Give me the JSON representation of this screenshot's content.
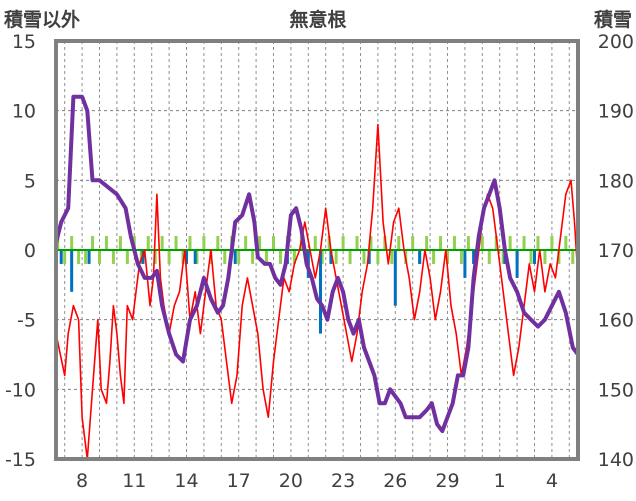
{
  "chart_data": {
    "type": "line",
    "title": "無意根",
    "left_axis": {
      "label": "積雪以外",
      "range": [
        -15,
        15
      ],
      "ticks": [
        "15",
        "10",
        "5",
        "0",
        "-5",
        "-10",
        "-15"
      ]
    },
    "right_axis": {
      "label": "積雪",
      "range": [
        140,
        200
      ],
      "ticks": [
        "200",
        "190",
        "180",
        "170",
        "160",
        "150",
        "140"
      ]
    },
    "x_ticks": [
      "8",
      "11",
      "14",
      "17",
      "20",
      "23",
      "26",
      "29",
      "1",
      "4"
    ],
    "grid": true,
    "colors": {
      "temperature": "#ff0000",
      "snow_depth": "#7030a0",
      "snow_change": "#92d050",
      "precipitation": "#0070c0",
      "zero_line": "#00a000",
      "frame": "#808080"
    },
    "series": [
      {
        "key": "temperature",
        "axis": "left",
        "points": [
          [
            6.5,
            -6
          ],
          [
            7,
            -9
          ],
          [
            7.2,
            -6
          ],
          [
            7.5,
            -4
          ],
          [
            7.8,
            -5
          ],
          [
            8,
            -12
          ],
          [
            8.3,
            -15
          ],
          [
            8.6,
            -10
          ],
          [
            8.9,
            -5
          ],
          [
            9.1,
            -10
          ],
          [
            9.4,
            -11
          ],
          [
            9.6,
            -8
          ],
          [
            9.8,
            -4
          ],
          [
            10,
            -6
          ],
          [
            10.2,
            -9
          ],
          [
            10.4,
            -11
          ],
          [
            10.6,
            -4
          ],
          [
            10.9,
            -5
          ],
          [
            11.1,
            -3
          ],
          [
            11.3,
            -1
          ],
          [
            11.6,
            0
          ],
          [
            11.9,
            -4
          ],
          [
            12.1,
            -2
          ],
          [
            12.3,
            4
          ],
          [
            12.5,
            -2
          ],
          [
            12.7,
            -4
          ],
          [
            13,
            -6
          ],
          [
            13.3,
            -4
          ],
          [
            13.6,
            -3
          ],
          [
            13.9,
            0
          ],
          [
            14.2,
            -5
          ],
          [
            14.5,
            -3
          ],
          [
            14.8,
            -6
          ],
          [
            15.1,
            -3
          ],
          [
            15.4,
            0
          ],
          [
            15.7,
            -4
          ],
          [
            16,
            -5
          ],
          [
            16.3,
            -8
          ],
          [
            16.6,
            -11
          ],
          [
            16.9,
            -9
          ],
          [
            17.2,
            -4
          ],
          [
            17.5,
            -2
          ],
          [
            17.8,
            -4
          ],
          [
            18.1,
            -6
          ],
          [
            18.4,
            -10
          ],
          [
            18.7,
            -12
          ],
          [
            19,
            -8
          ],
          [
            19.3,
            -5
          ],
          [
            19.6,
            -2
          ],
          [
            19.9,
            -3
          ],
          [
            20.2,
            -1
          ],
          [
            20.5,
            0
          ],
          [
            20.8,
            2
          ],
          [
            21.1,
            0
          ],
          [
            21.4,
            -2
          ],
          [
            21.7,
            0
          ],
          [
            22,
            3
          ],
          [
            22.3,
            0
          ],
          [
            22.6,
            -2
          ],
          [
            22.9,
            -4
          ],
          [
            23.2,
            -6
          ],
          [
            23.5,
            -8
          ],
          [
            23.8,
            -6
          ],
          [
            24.1,
            -3
          ],
          [
            24.4,
            -1
          ],
          [
            24.7,
            3
          ],
          [
            25,
            9
          ],
          [
            25.3,
            2
          ],
          [
            25.6,
            -1
          ],
          [
            25.9,
            2
          ],
          [
            26.2,
            3
          ],
          [
            26.5,
            0
          ],
          [
            26.8,
            -2
          ],
          [
            27.1,
            -5
          ],
          [
            27.4,
            -3
          ],
          [
            27.7,
            0
          ],
          [
            28,
            -2
          ],
          [
            28.3,
            -5
          ],
          [
            28.6,
            -3
          ],
          [
            28.9,
            0
          ],
          [
            29.2,
            -4
          ],
          [
            29.5,
            -6
          ],
          [
            29.8,
            -9
          ],
          [
            30.1,
            -7
          ],
          [
            30.4,
            -4
          ],
          [
            30.7,
            -1
          ],
          [
            31,
            2
          ],
          [
            31.3,
            4
          ],
          [
            31.6,
            3
          ],
          [
            31.9,
            0
          ],
          [
            32.2,
            -3
          ],
          [
            32.5,
            -6
          ],
          [
            32.8,
            -9
          ],
          [
            33.1,
            -7
          ],
          [
            33.4,
            -4
          ],
          [
            33.7,
            -1
          ],
          [
            34,
            -3
          ],
          [
            34.3,
            0
          ],
          [
            34.6,
            -3
          ],
          [
            34.9,
            -1
          ],
          [
            35.2,
            -2
          ],
          [
            35.5,
            1
          ],
          [
            35.8,
            4
          ],
          [
            36.1,
            5
          ],
          [
            36.3,
            2
          ],
          [
            36.5,
            -2
          ]
        ]
      },
      {
        "key": "snow_depth",
        "axis": "right",
        "points": [
          [
            6.5,
            171
          ],
          [
            6.8,
            174
          ],
          [
            7.2,
            176
          ],
          [
            7.5,
            192
          ],
          [
            8,
            192
          ],
          [
            8.3,
            190
          ],
          [
            8.6,
            180
          ],
          [
            9,
            180
          ],
          [
            9.5,
            179
          ],
          [
            10,
            178
          ],
          [
            10.5,
            176
          ],
          [
            10.8,
            172
          ],
          [
            11.2,
            168
          ],
          [
            11.6,
            166
          ],
          [
            12,
            166
          ],
          [
            12.3,
            167
          ],
          [
            12.6,
            162
          ],
          [
            13,
            158
          ],
          [
            13.4,
            155
          ],
          [
            13.8,
            154
          ],
          [
            14.2,
            160
          ],
          [
            14.6,
            162
          ],
          [
            15,
            166
          ],
          [
            15.4,
            163
          ],
          [
            15.8,
            161
          ],
          [
            16.1,
            162
          ],
          [
            16.4,
            166
          ],
          [
            16.8,
            174
          ],
          [
            17.2,
            175
          ],
          [
            17.6,
            178
          ],
          [
            17.9,
            174
          ],
          [
            18.1,
            169
          ],
          [
            18.5,
            168
          ],
          [
            18.8,
            168
          ],
          [
            19.1,
            166
          ],
          [
            19.4,
            165
          ],
          [
            19.7,
            168
          ],
          [
            20,
            175
          ],
          [
            20.3,
            176
          ],
          [
            20.6,
            173
          ],
          [
            20.9,
            168
          ],
          [
            21.2,
            166
          ],
          [
            21.5,
            163
          ],
          [
            21.8,
            162
          ],
          [
            22.1,
            160
          ],
          [
            22.4,
            164
          ],
          [
            22.7,
            166
          ],
          [
            23,
            164
          ],
          [
            23.3,
            160
          ],
          [
            23.6,
            158
          ],
          [
            23.9,
            160
          ],
          [
            24.2,
            156
          ],
          [
            24.5,
            154
          ],
          [
            24.8,
            152
          ],
          [
            25.1,
            148
          ],
          [
            25.4,
            148
          ],
          [
            25.7,
            150
          ],
          [
            26,
            149
          ],
          [
            26.3,
            148
          ],
          [
            26.6,
            146
          ],
          [
            27,
            146
          ],
          [
            27.4,
            146
          ],
          [
            27.8,
            147
          ],
          [
            28.1,
            148
          ],
          [
            28.4,
            145
          ],
          [
            28.7,
            144
          ],
          [
            29,
            146
          ],
          [
            29.3,
            148
          ],
          [
            29.6,
            152
          ],
          [
            29.9,
            152
          ],
          [
            30.2,
            156
          ],
          [
            30.5,
            166
          ],
          [
            30.8,
            172
          ],
          [
            31.1,
            176
          ],
          [
            31.4,
            178
          ],
          [
            31.7,
            180
          ],
          [
            32,
            176
          ],
          [
            32.3,
            170
          ],
          [
            32.6,
            166
          ],
          [
            33,
            164
          ],
          [
            33.4,
            161
          ],
          [
            33.8,
            160
          ],
          [
            34.2,
            159
          ],
          [
            34.6,
            160
          ],
          [
            35,
            162
          ],
          [
            35.4,
            164
          ],
          [
            35.8,
            161
          ],
          [
            36.2,
            156
          ],
          [
            36.5,
            155
          ]
        ]
      },
      {
        "key": "snow_change",
        "axis": "left",
        "style": "bars",
        "points": [
          [
            6.6,
            1
          ],
          [
            7,
            -1
          ],
          [
            7.4,
            1
          ],
          [
            7.8,
            -1
          ],
          [
            8.2,
            -1
          ],
          [
            8.6,
            1
          ],
          [
            9,
            -1
          ],
          [
            9.4,
            1
          ],
          [
            9.8,
            -1
          ],
          [
            10.2,
            1
          ],
          [
            10.6,
            -1
          ],
          [
            11,
            1
          ],
          [
            11.4,
            -1
          ],
          [
            11.8,
            1
          ],
          [
            12.2,
            -1
          ],
          [
            12.6,
            1
          ],
          [
            13,
            -1
          ],
          [
            13.4,
            1
          ],
          [
            13.8,
            -1
          ],
          [
            14.2,
            1
          ],
          [
            14.6,
            -1
          ],
          [
            15,
            1
          ],
          [
            15.4,
            -1
          ],
          [
            15.8,
            1
          ],
          [
            16.2,
            -1
          ],
          [
            16.6,
            1
          ],
          [
            17,
            -1
          ],
          [
            17.4,
            1
          ],
          [
            17.8,
            -1
          ],
          [
            18.2,
            1
          ],
          [
            18.6,
            -1
          ],
          [
            19,
            1
          ],
          [
            19.4,
            -1
          ],
          [
            19.8,
            1
          ],
          [
            20.2,
            -1
          ],
          [
            20.6,
            1
          ],
          [
            21,
            -1
          ],
          [
            21.4,
            1
          ],
          [
            21.8,
            -1
          ],
          [
            22.2,
            1
          ],
          [
            22.6,
            -1
          ],
          [
            23,
            1
          ],
          [
            23.4,
            -1
          ],
          [
            23.8,
            1
          ],
          [
            24.2,
            -1
          ],
          [
            24.6,
            1
          ],
          [
            25,
            -1
          ],
          [
            25.4,
            1
          ],
          [
            25.8,
            -1
          ],
          [
            26.2,
            1
          ],
          [
            26.6,
            -1
          ],
          [
            27,
            1
          ],
          [
            27.4,
            -1
          ],
          [
            27.8,
            1
          ],
          [
            28.2,
            -1
          ],
          [
            28.6,
            1
          ],
          [
            29,
            -1
          ],
          [
            29.4,
            1
          ],
          [
            29.8,
            -1
          ],
          [
            30.2,
            1
          ],
          [
            30.6,
            -1
          ],
          [
            31,
            1
          ],
          [
            31.4,
            -1
          ],
          [
            31.8,
            1
          ],
          [
            32.2,
            -1
          ],
          [
            32.6,
            1
          ],
          [
            33,
            -1
          ],
          [
            33.4,
            1
          ],
          [
            33.8,
            -1
          ],
          [
            34.2,
            1
          ],
          [
            34.6,
            -1
          ],
          [
            35,
            1
          ],
          [
            35.4,
            -1
          ],
          [
            35.8,
            1
          ],
          [
            36.2,
            -1
          ]
        ]
      },
      {
        "key": "precipitation",
        "axis": "left",
        "style": "bars",
        "points": [
          [
            6.8,
            -1
          ],
          [
            7.4,
            -3
          ],
          [
            8.4,
            -1
          ],
          [
            11.5,
            -1
          ],
          [
            14,
            -1
          ],
          [
            14.5,
            -1
          ],
          [
            16.8,
            -1
          ],
          [
            19.8,
            -1
          ],
          [
            21,
            -2
          ],
          [
            21.7,
            -6
          ],
          [
            22.3,
            -1
          ],
          [
            24.5,
            -1
          ],
          [
            26,
            -4
          ],
          [
            27.4,
            -1
          ],
          [
            30,
            -2
          ],
          [
            30.5,
            -1
          ],
          [
            32.3,
            -1
          ],
          [
            33,
            -2
          ],
          [
            34,
            -1
          ]
        ]
      }
    ]
  }
}
